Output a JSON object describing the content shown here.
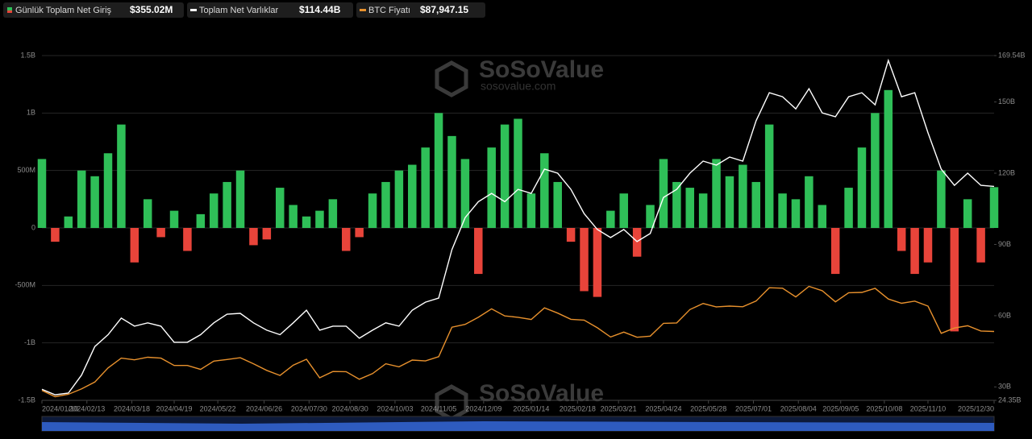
{
  "chart_data": {
    "type": "bar-line",
    "watermark": {
      "brand": "SoSoValue",
      "site": "sosovalue.com"
    },
    "x": [
      "2024/01/10",
      "2024/01/20",
      "2024/01/30",
      "2024/02/09",
      "2024/02/19",
      "2024/02/29",
      "2024/03/10",
      "2024/03/20",
      "2024/03/30",
      "2024/04/09",
      "2024/04/19",
      "2024/04/29",
      "2024/05/09",
      "2024/05/19",
      "2024/05/29",
      "2024/06/08",
      "2024/06/18",
      "2024/06/28",
      "2024/07/08",
      "2024/07/18",
      "2024/07/28",
      "2024/08/07",
      "2024/08/17",
      "2024/08/27",
      "2024/09/06",
      "2024/09/16",
      "2024/09/26",
      "2024/10/06",
      "2024/10/16",
      "2024/10/26",
      "2024/11/05",
      "2024/11/15",
      "2024/11/25",
      "2024/12/05",
      "2024/12/15",
      "2024/12/25",
      "2025/01/04",
      "2025/01/14",
      "2025/01/24",
      "2025/02/03",
      "2025/02/13",
      "2025/02/23",
      "2025/03/05",
      "2025/03/15",
      "2025/03/25",
      "2025/04/04",
      "2025/04/14",
      "2025/04/24",
      "2025/05/04",
      "2025/05/14",
      "2025/05/24",
      "2025/06/03",
      "2025/06/13",
      "2025/06/23",
      "2025/07/03",
      "2025/07/13",
      "2025/07/23",
      "2025/08/02",
      "2025/08/12",
      "2025/08/22",
      "2025/09/01",
      "2025/09/11",
      "2025/09/21",
      "2025/10/01",
      "2025/10/11",
      "2025/10/21",
      "2025/10/31",
      "2025/11/10",
      "2025/11/20",
      "2025/11/30",
      "2025/12/10",
      "2025/12/20",
      "2025/12/30"
    ],
    "xlim": [
      "2024/01/10",
      "2025/12/30"
    ],
    "xticks": [
      "2024/01/10",
      "2024/02/13",
      "2024/03/18",
      "2024/04/19",
      "2024/05/22",
      "2024/06/26",
      "2024/07/30",
      "2024/08/30",
      "2024/10/03",
      "2024/11/05",
      "2024/12/09",
      "2025/01/14",
      "2025/02/18",
      "2025/03/21",
      "2025/04/24",
      "2025/05/28",
      "2025/07/01",
      "2025/08/04",
      "2025/09/05",
      "2025/10/08",
      "2025/11/10",
      "2025/12/30"
    ],
    "ylim": [
      -1500,
      1500
    ],
    "yticks": [
      {
        "value": -1500,
        "label": "-1.5B"
      },
      {
        "value": -1000,
        "label": "-1B"
      },
      {
        "value": -500,
        "label": "-500M"
      },
      0,
      {
        "value": 500,
        "label": "500M"
      },
      {
        "value": 1000,
        "label": "1B"
      },
      {
        "value": 1500,
        "label": "1.5B"
      }
    ],
    "y2lim": [
      24.35,
      169.54
    ],
    "y2ticks": [
      {
        "value": 24.35,
        "label": "24.35B"
      },
      {
        "value": 30,
        "label": "30B"
      },
      {
        "value": 60,
        "label": "60B"
      },
      {
        "value": 90,
        "label": "90B"
      },
      {
        "value": 120,
        "label": "120B"
      },
      {
        "value": 150,
        "label": "150B"
      },
      {
        "value": 169.54,
        "label": "169.54B"
      }
    ],
    "y3lim": [
      39000,
      284000
    ],
    "grid": true,
    "series": [
      {
        "name": "Günlük Toplam Net Giriş",
        "latest_label": "$355.02M",
        "type": "bar",
        "color": "#2fbf58",
        "negative_color": "#e8443a",
        "values": [
          600,
          -120,
          100,
          500,
          450,
          650,
          900,
          -300,
          250,
          -80,
          150,
          -200,
          120,
          300,
          400,
          500,
          -150,
          -100,
          350,
          200,
          100,
          150,
          250,
          -200,
          -80,
          300,
          400,
          500,
          550,
          700,
          1000,
          800,
          600,
          -400,
          700,
          900,
          950,
          300,
          650,
          400,
          -120,
          -550,
          -600,
          150,
          300,
          -250,
          200,
          600,
          400,
          350,
          300,
          600,
          450,
          550,
          400,
          900,
          300,
          250,
          450,
          200,
          -400,
          350,
          700,
          1000,
          1200,
          -200,
          -400,
          -300,
          500,
          -900,
          250,
          -300,
          355.02
        ]
      },
      {
        "name": "Toplam Net Varlıklar",
        "latest_label": "$114.44B",
        "type": "line",
        "axis": "y2",
        "color": "#ffffff",
        "values": [
          29,
          26.7,
          27.4,
          35,
          47,
          52,
          59,
          55.6,
          57,
          55.6,
          48.8,
          48.8,
          52,
          57,
          60.6,
          61,
          57,
          53.9,
          52,
          57,
          62.3,
          53.9,
          55.6,
          55.6,
          50.5,
          53.9,
          57,
          55.6,
          62.3,
          65.7,
          67.4,
          87.8,
          101.3,
          108,
          111.5,
          108,
          113.2,
          111.5,
          121.7,
          120,
          113.2,
          103,
          96.3,
          92.9,
          96.3,
          91.2,
          94.6,
          109.8,
          113.2,
          120,
          125.1,
          123.4,
          126.8,
          125.1,
          142.1,
          153.9,
          152.2,
          147.1,
          155.6,
          145.4,
          143.8,
          152.2,
          153.9,
          148.8,
          167.5,
          152.2,
          153.9,
          137,
          121.7,
          114.9,
          120,
          114.9,
          114.44
        ]
      },
      {
        "name": "BTC Fiyatı",
        "latest_label": "$87,947.15",
        "type": "line",
        "axis": "y3",
        "color": "#e8912d",
        "values": [
          46000,
          41600,
          43300,
          47100,
          52000,
          62000,
          69000,
          67800,
          69600,
          69000,
          63800,
          63800,
          61000,
          66900,
          68000,
          69300,
          65000,
          60300,
          56700,
          64000,
          68200,
          55000,
          59500,
          59400,
          54000,
          58000,
          65000,
          62800,
          67600,
          67000,
          70000,
          91000,
          93000,
          98000,
          104000,
          99000,
          98000,
          96500,
          104700,
          101000,
          96600,
          96000,
          90600,
          84000,
          87500,
          83800,
          84600,
          93700,
          94000,
          103500,
          107800,
          105400,
          106000,
          105500,
          109600,
          119000,
          118700,
          112500,
          120000,
          116900,
          109000,
          115500,
          115700,
          118600,
          111000,
          108000,
          109500,
          106000,
          86600,
          90400,
          92000,
          88300,
          87947.15
        ]
      }
    ]
  }
}
